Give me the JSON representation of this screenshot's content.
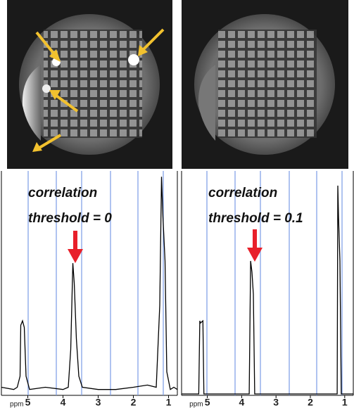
{
  "chart_data": [
    {
      "type": "line",
      "annotation": [
        "correlation",
        "threshold = 0"
      ],
      "x_label": "ppm",
      "xlim": [
        5.75,
        0.75
      ],
      "xticks": [
        5,
        4,
        3,
        2,
        1
      ],
      "ylim": [
        0,
        100
      ],
      "series": [
        {
          "color": "#000000",
          "x": [
            5.75,
            5.4,
            5.3,
            5.22,
            5.2,
            5.15,
            5.1,
            5.05,
            4.95,
            4.5,
            4.0,
            3.85,
            3.78,
            3.72,
            3.68,
            3.62,
            3.55,
            3.45,
            3.0,
            2.5,
            2.0,
            1.6,
            1.35,
            1.25,
            1.2,
            1.16,
            1.1,
            1.05,
            0.95,
            0.85,
            0.75
          ],
          "values": [
            3,
            2,
            3,
            8,
            31,
            33,
            30,
            8,
            2,
            3,
            2,
            3,
            20,
            59,
            50,
            25,
            8,
            3,
            2,
            2,
            3,
            4,
            3,
            40,
            98,
            80,
            60,
            10,
            2,
            3,
            2
          ]
        }
      ]
    },
    {
      "type": "line",
      "annotation": [
        "correlation",
        "threshold = 0.1"
      ],
      "x_label": "ppm",
      "xlim": [
        5.75,
        0.75
      ],
      "xticks": [
        5,
        4,
        3,
        2,
        1
      ],
      "ylim": [
        0,
        100
      ],
      "series": [
        {
          "color": "#000000",
          "x": [
            5.75,
            5.25,
            5.22,
            5.2,
            5.13,
            5.1,
            5.05,
            3.78,
            3.74,
            3.7,
            3.66,
            3.62,
            1.22,
            1.2,
            1.18,
            1.14,
            1.1,
            0.75
          ],
          "values": [
            0,
            0,
            33,
            32,
            33,
            0,
            0,
            0,
            60,
            55,
            45,
            0,
            0,
            94,
            80,
            60,
            0,
            0
          ]
        }
      ]
    }
  ]
}
